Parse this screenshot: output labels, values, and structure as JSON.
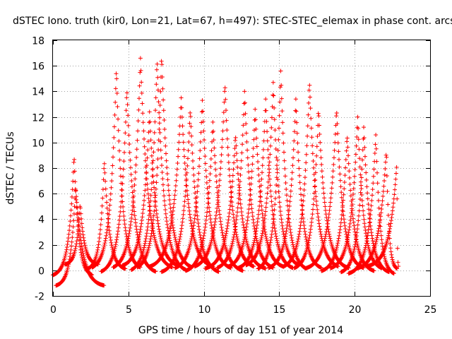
{
  "chart_data": {
    "type": "scatter",
    "title": "dSTEC Iono. truth (kir0, Lon=21, Lat=67, h=497): STEC-STEC_elemax in phase cont. arcs",
    "xlabel": "GPS time / hours of day 151 of year 2014",
    "ylabel": "dSTEC  / TECUs",
    "xlim": [
      0,
      25
    ],
    "ylim": [
      -2,
      18
    ],
    "xticks": [
      0,
      5,
      10,
      15,
      20,
      25
    ],
    "yticks": [
      -2,
      0,
      2,
      4,
      6,
      8,
      10,
      12,
      14,
      16,
      18
    ],
    "grid": true,
    "marker": "+",
    "color": "#ff0000",
    "arcs": [
      {
        "start": 0.0,
        "peak_t": 1.4,
        "peak_v": 9.0,
        "end": 2.6,
        "floor": -0.5
      },
      {
        "start": 0.2,
        "peak_t": 1.5,
        "peak_v": 6.6,
        "end": 3.4,
        "floor": -1.3
      },
      {
        "start": 0.8,
        "peak_t": 1.8,
        "peak_v": 5.2,
        "end": 3.0,
        "floor": 0.4
      },
      {
        "start": 2.3,
        "peak_t": 3.4,
        "peak_v": 8.6,
        "end": 4.8,
        "floor": 0.0
      },
      {
        "start": 2.6,
        "peak_t": 4.2,
        "peak_v": 15.8,
        "end": 5.8,
        "floor": 0.0
      },
      {
        "start": 3.2,
        "peak_t": 4.9,
        "peak_v": 14.2,
        "end": 6.8,
        "floor": -0.3
      },
      {
        "start": 4.0,
        "peak_t": 5.8,
        "peak_v": 16.6,
        "end": 7.9,
        "floor": 0.0
      },
      {
        "start": 4.6,
        "peak_t": 6.4,
        "peak_v": 12.4,
        "end": 8.3,
        "floor": 0.2
      },
      {
        "start": 5.2,
        "peak_t": 6.9,
        "peak_v": 16.5,
        "end": 8.8,
        "floor": -0.2
      },
      {
        "start": 5.6,
        "peak_t": 7.2,
        "peak_v": 16.8,
        "end": 9.2,
        "floor": 0.0
      },
      {
        "start": 6.4,
        "peak_t": 8.5,
        "peak_v": 13.5,
        "end": 10.6,
        "floor": 0.1
      },
      {
        "start": 7.2,
        "peak_t": 9.1,
        "peak_v": 12.6,
        "end": 11.0,
        "floor": -0.3
      },
      {
        "start": 8.1,
        "peak_t": 9.9,
        "peak_v": 13.3,
        "end": 11.8,
        "floor": 0.0
      },
      {
        "start": 8.8,
        "peak_t": 10.6,
        "peak_v": 11.6,
        "end": 12.6,
        "floor": -0.2
      },
      {
        "start": 9.4,
        "peak_t": 11.4,
        "peak_v": 14.6,
        "end": 13.3,
        "floor": 0.1
      },
      {
        "start": 10.1,
        "peak_t": 12.1,
        "peak_v": 10.6,
        "end": 14.1,
        "floor": 0.0
      },
      {
        "start": 10.9,
        "peak_t": 12.7,
        "peak_v": 14.0,
        "end": 14.6,
        "floor": 0.0
      },
      {
        "start": 11.6,
        "peak_t": 13.4,
        "peak_v": 12.6,
        "end": 15.3,
        "floor": 0.1
      },
      {
        "start": 12.3,
        "peak_t": 14.1,
        "peak_v": 13.4,
        "end": 15.9,
        "floor": 0.0
      },
      {
        "start": 12.8,
        "peak_t": 14.6,
        "peak_v": 14.7,
        "end": 16.3,
        "floor": 0.2
      },
      {
        "start": 13.6,
        "peak_t": 15.1,
        "peak_v": 15.6,
        "end": 16.8,
        "floor": -0.1
      },
      {
        "start": 14.3,
        "peak_t": 16.1,
        "peak_v": 13.4,
        "end": 17.8,
        "floor": 0.0
      },
      {
        "start": 15.3,
        "peak_t": 17.0,
        "peak_v": 14.8,
        "end": 18.9,
        "floor": 0.1
      },
      {
        "start": 16.0,
        "peak_t": 17.6,
        "peak_v": 12.6,
        "end": 19.6,
        "floor": 0.0
      },
      {
        "start": 16.8,
        "peak_t": 18.8,
        "peak_v": 12.6,
        "end": 20.6,
        "floor": 0.0
      },
      {
        "start": 17.8,
        "peak_t": 19.5,
        "peak_v": 10.6,
        "end": 21.3,
        "floor": -0.2
      },
      {
        "start": 18.4,
        "peak_t": 20.2,
        "peak_v": 12.0,
        "end": 21.8,
        "floor": 0.0
      },
      {
        "start": 19.1,
        "peak_t": 20.6,
        "peak_v": 11.2,
        "end": 22.3,
        "floor": -0.3
      },
      {
        "start": 19.6,
        "peak_t": 21.4,
        "peak_v": 10.6,
        "end": 22.6,
        "floor": -0.4
      },
      {
        "start": 20.1,
        "peak_t": 22.1,
        "peak_v": 9.4,
        "end": 22.8,
        "floor": 0.0
      },
      {
        "start": 20.8,
        "peak_t": 22.8,
        "peak_v": 8.4,
        "end": 22.9,
        "floor": 0.2
      }
    ]
  }
}
